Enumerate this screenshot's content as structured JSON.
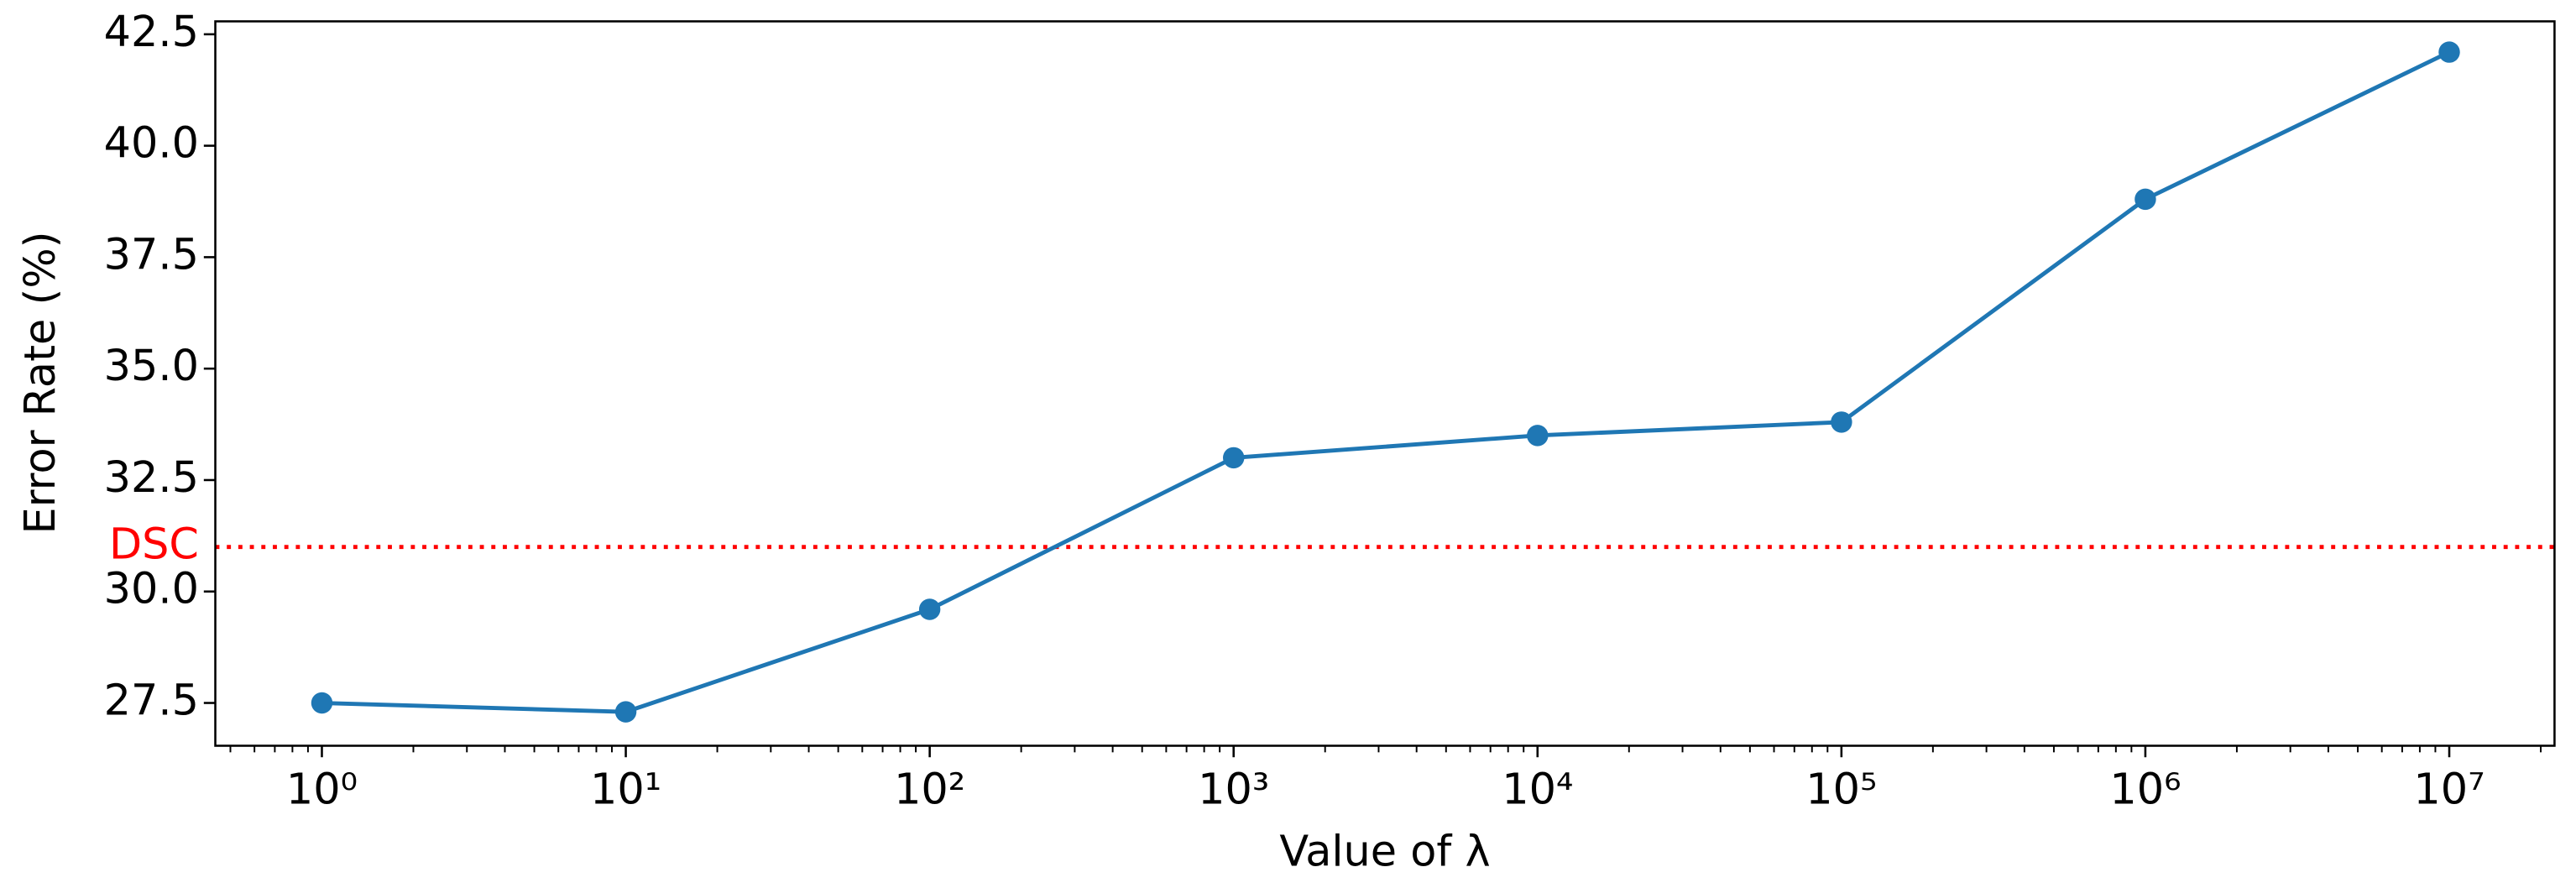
{
  "chart_data": {
    "type": "line",
    "xlabel": "Value of λ",
    "ylabel": "Error Rate (%)",
    "xscale": "log",
    "x": [
      1,
      10,
      100,
      1000,
      10000,
      100000,
      1000000,
      10000000
    ],
    "series": [
      {
        "color": "#1f77b4",
        "marker": "circle",
        "values": [
          27.5,
          27.3,
          29.6,
          33.0,
          33.5,
          33.8,
          38.8,
          42.1
        ]
      }
    ],
    "xlim": [
      0.446,
      22200000
    ],
    "xticks": [
      {
        "value": 1,
        "label": "10⁰"
      },
      {
        "value": 10,
        "label": "10¹"
      },
      {
        "value": 100,
        "label": "10²"
      },
      {
        "value": 1000,
        "label": "10³"
      },
      {
        "value": 10000,
        "label": "10⁴"
      },
      {
        "value": 100000,
        "label": "10⁵"
      },
      {
        "value": 1000000,
        "label": "10⁶"
      },
      {
        "value": 10000000,
        "label": "10⁷"
      }
    ],
    "ylim": [
      26.54,
      42.79
    ],
    "yticks": [
      27.5,
      {
        "value": 30,
        "label": "30.0"
      },
      32.5,
      {
        "value": 35,
        "label": "35.0"
      },
      37.5,
      {
        "value": 40,
        "label": "40.0"
      },
      42.5
    ],
    "reference_line": {
      "label": "DSC",
      "value": 31.0,
      "color": "#ff0000"
    }
  }
}
